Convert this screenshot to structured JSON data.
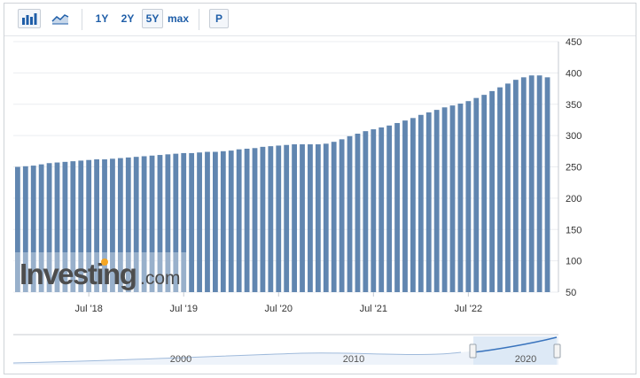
{
  "toolbar": {
    "icons": [
      "bar-chart-icon",
      "area-chart-icon"
    ],
    "ranges": [
      "1Y",
      "2Y",
      "5Y",
      "max"
    ],
    "selected_range": "5Y",
    "p_label": "P"
  },
  "watermark": {
    "text": "Investing",
    "suffix": ".com"
  },
  "colors": {
    "bar": "#6186b0",
    "bar_dark": "#4e7099",
    "grid": "#ebedf0",
    "axis_text": "#333333",
    "navigator_line": "#4a7fc1",
    "navigator_fill": "#dfe9f5"
  },
  "chart_data": {
    "type": "bar",
    "ylim": [
      50,
      450
    ],
    "yticks": [
      50,
      100,
      150,
      200,
      250,
      300,
      350,
      400,
      450
    ],
    "xtick_labels": [
      "Jul '18",
      "Jul '19",
      "Jul '20",
      "Jul '21",
      "Jul '22"
    ],
    "values": [
      250,
      251,
      252,
      254,
      256,
      257,
      258,
      259,
      260,
      261,
      262,
      262,
      263,
      264,
      265,
      266,
      267,
      268,
      269,
      270,
      271,
      272,
      272,
      273,
      274,
      274,
      275,
      276,
      278,
      279,
      280,
      282,
      283,
      284,
      285,
      286,
      286,
      286,
      286,
      287,
      290,
      294,
      299,
      303,
      307,
      310,
      313,
      316,
      320,
      324,
      328,
      333,
      337,
      341,
      345,
      348,
      351,
      355,
      360,
      365,
      371,
      377,
      383,
      389,
      393,
      396,
      396,
      393
    ],
    "grid": true,
    "legend": "none"
  },
  "navigator": {
    "labels": [
      "2000",
      "2010",
      "2020"
    ]
  }
}
